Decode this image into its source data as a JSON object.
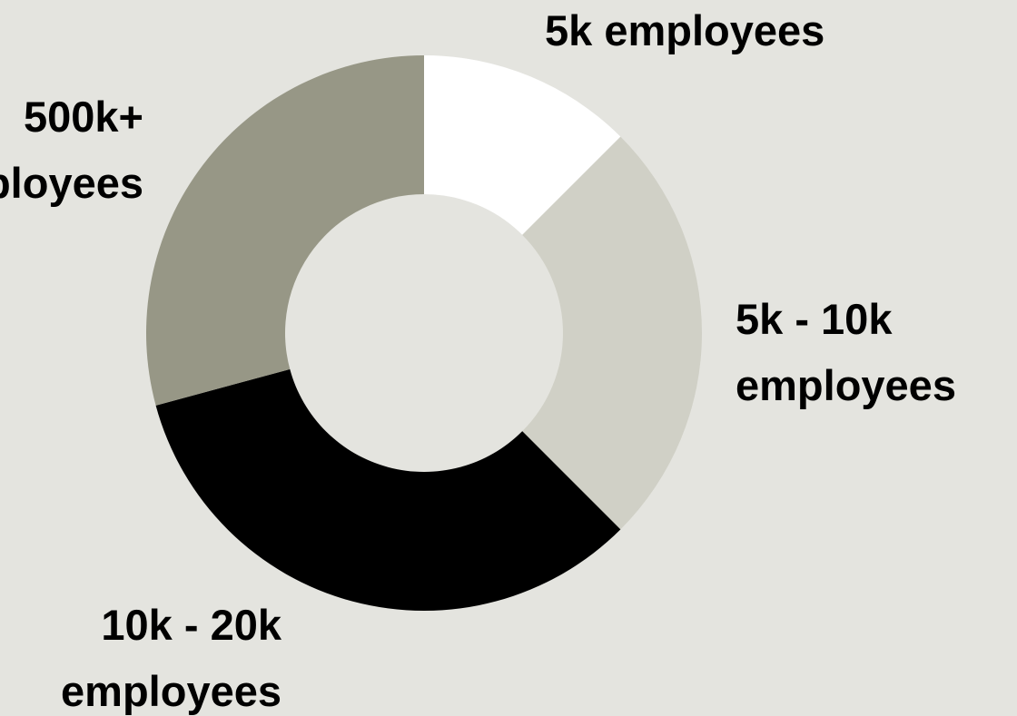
{
  "chart_data": {
    "type": "pie",
    "donut": true,
    "background": "#e4e4df",
    "label_color": "#000000",
    "slices": [
      {
        "label_lines": [
          "5k employees"
        ],
        "value": 12.5,
        "color": "#ffffff"
      },
      {
        "label_lines": [
          "5k - 10k",
          "employees"
        ],
        "value": 25.0,
        "color": "#d0d0c6"
      },
      {
        "label_lines": [
          "10k - 20k",
          "employees"
        ],
        "value": 33.3,
        "color": "#000000"
      },
      {
        "label_lines": [
          "500k+",
          "employees"
        ],
        "value": 29.2,
        "color": "#979786"
      }
    ]
  }
}
